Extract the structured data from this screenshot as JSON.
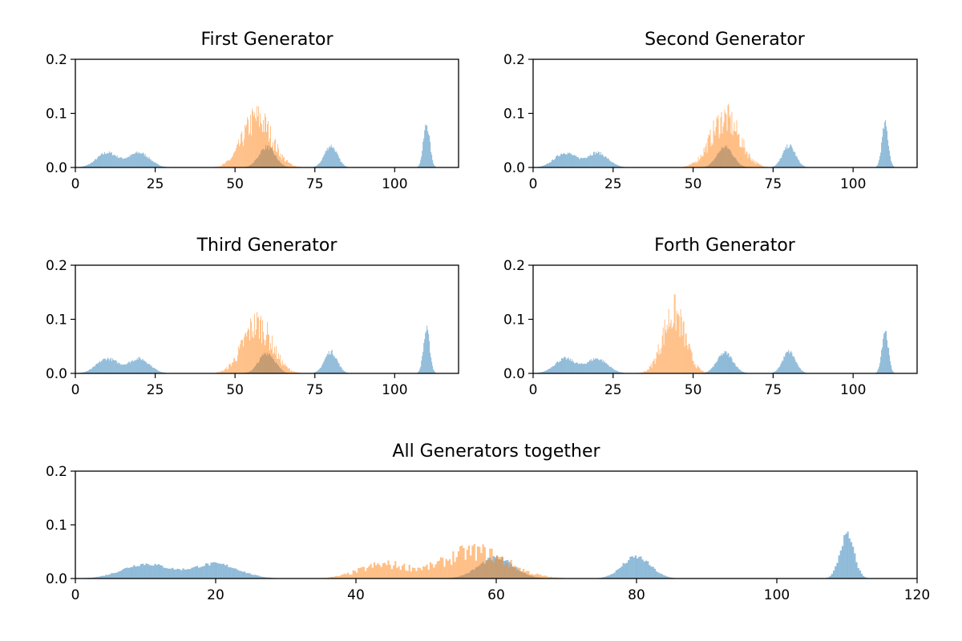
{
  "colors": {
    "real": "#1f77b4",
    "generated": "#ff7f0e",
    "bar_opacity": 0.5
  },
  "chart_data": [
    {
      "type": "histogram",
      "title": "First Generator",
      "xlim": [
        0,
        120
      ],
      "ylim": [
        0,
        0.2
      ],
      "xticks": [
        0,
        25,
        50,
        75,
        100
      ],
      "yticks": [
        0.0,
        0.1,
        0.2
      ],
      "xtick_labels": [
        "0",
        "25",
        "50",
        "75",
        "100"
      ],
      "ytick_labels": [
        "0.0",
        "0.1",
        "0.2"
      ],
      "series": [
        {
          "color": "#1f77b4",
          "components": [
            {
              "mean": 10,
              "sd": 3.3,
              "peak": 0.027
            },
            {
              "mean": 20,
              "sd": 3.3,
              "peak": 0.027
            },
            {
              "mean": 60,
              "sd": 2.5,
              "peak": 0.038
            },
            {
              "mean": 80,
              "sd": 2.0,
              "peak": 0.04
            },
            {
              "mean": 110,
              "sd": 1.0,
              "peak": 0.08
            }
          ]
        },
        {
          "color": "#ff7f0e",
          "components": [
            {
              "mean": 57,
              "sd": 4.5,
              "peak": 0.09
            }
          ]
        }
      ]
    },
    {
      "type": "histogram",
      "title": "Second Generator",
      "xlim": [
        0,
        120
      ],
      "ylim": [
        0,
        0.2
      ],
      "xticks": [
        0,
        25,
        50,
        75,
        100
      ],
      "yticks": [
        0.0,
        0.1,
        0.2
      ],
      "xtick_labels": [
        "0",
        "25",
        "50",
        "75",
        "100"
      ],
      "ytick_labels": [
        "0.0",
        "0.1",
        "0.2"
      ],
      "series": [
        {
          "color": "#1f77b4",
          "components": [
            {
              "mean": 10,
              "sd": 3.3,
              "peak": 0.027
            },
            {
              "mean": 20,
              "sd": 3.3,
              "peak": 0.027
            },
            {
              "mean": 60,
              "sd": 2.5,
              "peak": 0.038
            },
            {
              "mean": 80,
              "sd": 2.0,
              "peak": 0.04
            },
            {
              "mean": 110,
              "sd": 1.0,
              "peak": 0.08
            }
          ]
        },
        {
          "color": "#ff7f0e",
          "components": [
            {
              "mean": 60,
              "sd": 4.5,
              "peak": 0.09
            }
          ]
        }
      ]
    },
    {
      "type": "histogram",
      "title": "Third Generator",
      "xlim": [
        0,
        120
      ],
      "ylim": [
        0,
        0.2
      ],
      "xticks": [
        0,
        25,
        50,
        75,
        100
      ],
      "yticks": [
        0.0,
        0.1,
        0.2
      ],
      "xtick_labels": [
        "0",
        "25",
        "50",
        "75",
        "100"
      ],
      "ytick_labels": [
        "0.0",
        "0.1",
        "0.2"
      ],
      "series": [
        {
          "color": "#1f77b4",
          "components": [
            {
              "mean": 10,
              "sd": 3.3,
              "peak": 0.027
            },
            {
              "mean": 20,
              "sd": 3.3,
              "peak": 0.027
            },
            {
              "mean": 60,
              "sd": 2.5,
              "peak": 0.038
            },
            {
              "mean": 80,
              "sd": 2.0,
              "peak": 0.04
            },
            {
              "mean": 110,
              "sd": 1.0,
              "peak": 0.08
            }
          ]
        },
        {
          "color": "#ff7f0e",
          "components": [
            {
              "mean": 57,
              "sd": 4.5,
              "peak": 0.09
            }
          ]
        }
      ]
    },
    {
      "type": "histogram",
      "title": "Forth Generator",
      "xlim": [
        0,
        120
      ],
      "ylim": [
        0,
        0.2
      ],
      "xticks": [
        0,
        25,
        50,
        75,
        100
      ],
      "yticks": [
        0.0,
        0.1,
        0.2
      ],
      "xtick_labels": [
        "0",
        "25",
        "50",
        "75",
        "100"
      ],
      "ytick_labels": [
        "0.0",
        "0.1",
        "0.2"
      ],
      "series": [
        {
          "color": "#1f77b4",
          "components": [
            {
              "mean": 10,
              "sd": 3.3,
              "peak": 0.027
            },
            {
              "mean": 20,
              "sd": 3.3,
              "peak": 0.027
            },
            {
              "mean": 60,
              "sd": 2.5,
              "peak": 0.038
            },
            {
              "mean": 80,
              "sd": 2.0,
              "peak": 0.04
            },
            {
              "mean": 110,
              "sd": 1.0,
              "peak": 0.08
            }
          ]
        },
        {
          "color": "#ff7f0e",
          "components": [
            {
              "mean": 44,
              "sd": 3.5,
              "peak": 0.11
            }
          ]
        }
      ]
    },
    {
      "type": "histogram",
      "title": "All Generators together",
      "xlim": [
        0,
        120
      ],
      "ylim": [
        0,
        0.2
      ],
      "xticks": [
        0,
        20,
        40,
        60,
        80,
        100,
        120
      ],
      "yticks": [
        0.0,
        0.1,
        0.2
      ],
      "xtick_labels": [
        "0",
        "20",
        "40",
        "60",
        "80",
        "100",
        "120"
      ],
      "ytick_labels": [
        "0.0",
        "0.1",
        "0.2"
      ],
      "series": [
        {
          "color": "#1f77b4",
          "components": [
            {
              "mean": 10,
              "sd": 3.3,
              "peak": 0.027
            },
            {
              "mean": 20,
              "sd": 3.3,
              "peak": 0.027
            },
            {
              "mean": 60,
              "sd": 2.5,
              "peak": 0.038
            },
            {
              "mean": 80,
              "sd": 2.0,
              "peak": 0.04
            },
            {
              "mean": 110,
              "sd": 1.0,
              "peak": 0.08
            }
          ]
        },
        {
          "color": "#ff7f0e",
          "components": [
            {
              "mean": 44,
              "sd": 3.5,
              "peak": 0.025
            },
            {
              "mean": 57,
              "sd": 4.5,
              "peak": 0.05
            }
          ]
        }
      ]
    }
  ]
}
